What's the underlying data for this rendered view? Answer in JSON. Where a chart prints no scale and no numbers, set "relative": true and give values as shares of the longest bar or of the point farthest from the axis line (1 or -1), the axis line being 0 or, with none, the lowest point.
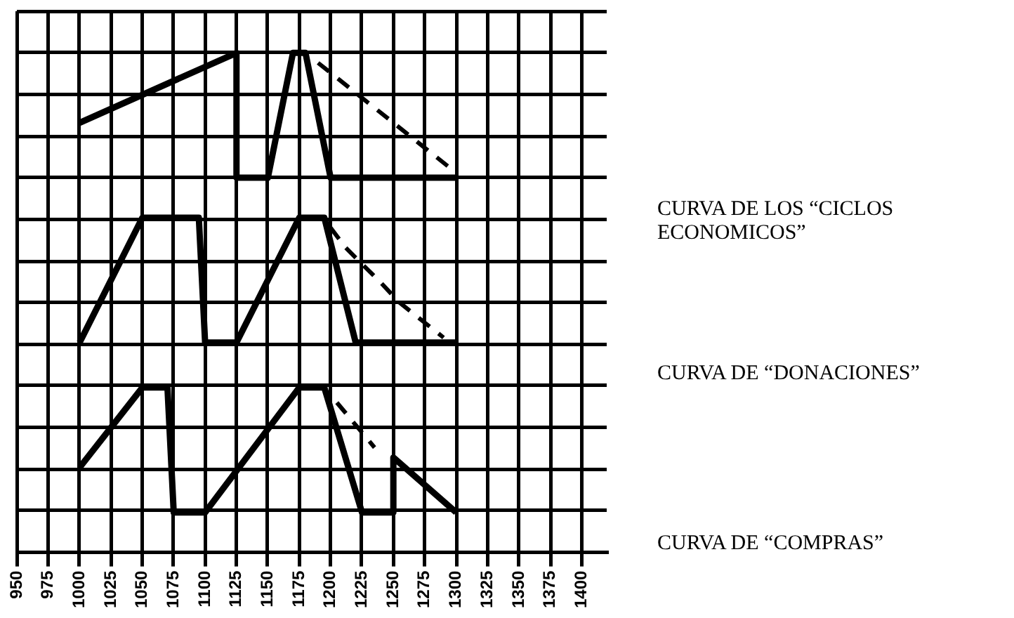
{
  "chart_data": {
    "type": "line",
    "relative": true,
    "grid": true,
    "legend": false,
    "xlim": [
      950,
      1420
    ],
    "xticks": [
      950,
      975,
      1000,
      1025,
      1050,
      1075,
      1100,
      1125,
      1150,
      1175,
      1200,
      1225,
      1250,
      1275,
      1300,
      1325,
      1350,
      1375,
      1400
    ],
    "series": [
      {
        "name": "CURVA DE LOS “CICLOS ECONOMICOS”",
        "color": "#000000",
        "line_style": "solid",
        "x": [
          1000,
          1125,
          1125,
          1150,
          1170,
          1180,
          1200,
          1300
        ],
        "values": [
          0.86,
          1,
          0.75,
          0.75,
          1,
          1,
          0.75,
          0.75
        ]
      },
      {
        "color": "#000000",
        "line_style": "dashed",
        "x": [
          1190,
          1295
        ],
        "values": [
          0.98,
          0.77
        ]
      },
      {
        "name": "CURVA DE “DONACIONES”",
        "color": "#000000",
        "line_style": "solid",
        "x": [
          1000,
          1050,
          1095,
          1100,
          1125,
          1175,
          1195,
          1220,
          1300
        ],
        "values": [
          0.42,
          0.67,
          0.67,
          0.42,
          0.42,
          0.67,
          0.67,
          0.42,
          0.42
        ]
      },
      {
        "color": "#000000",
        "line_style": "dashed",
        "x": [
          1200,
          1212,
          1240,
          1255,
          1290
        ],
        "values": [
          0.65,
          0.61,
          0.54,
          0.5,
          0.43
        ]
      },
      {
        "name": "CURVA DE “COMPRAS”",
        "color": "#000000",
        "line_style": "solid",
        "x": [
          1000,
          1050,
          1070,
          1075,
          1100,
          1175,
          1195,
          1225,
          1250,
          1250,
          1300
        ],
        "values": [
          0.17,
          0.33,
          0.33,
          0.08,
          0.08,
          0.33,
          0.33,
          0.08,
          0.08,
          0.19,
          0.08
        ]
      },
      {
        "color": "#000000",
        "line_style": "dashed",
        "x": [
          1205,
          1235
        ],
        "values": [
          0.3,
          0.21
        ]
      }
    ]
  }
}
